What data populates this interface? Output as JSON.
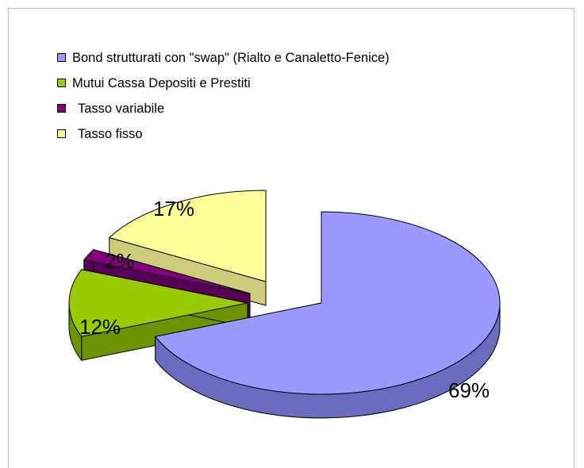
{
  "chart_data": {
    "type": "pie",
    "title": "",
    "legend_position": "top-left",
    "exploded": true,
    "three_d": true,
    "slices": [
      {
        "label": "Bond strutturati con \"swap\" (Rialto e Canaletto-Fenice)",
        "value": 69,
        "value_label": "69%",
        "color": "#9999ff",
        "side_color": "#6b6bc0"
      },
      {
        "label": "Mutui Cassa Depositi e Prestiti",
        "value": 12,
        "value_label": "12%",
        "color": "#99cc00",
        "side_color": "#6d9400"
      },
      {
        "label": "Tasso variabile",
        "value": 2,
        "value_label": "2%",
        "color": "#800080",
        "side_color": "#560056"
      },
      {
        "label": "Tasso fisso",
        "value": 17,
        "value_label": "17%",
        "color": "#ffff99",
        "side_color": "#cccc7a"
      }
    ]
  }
}
